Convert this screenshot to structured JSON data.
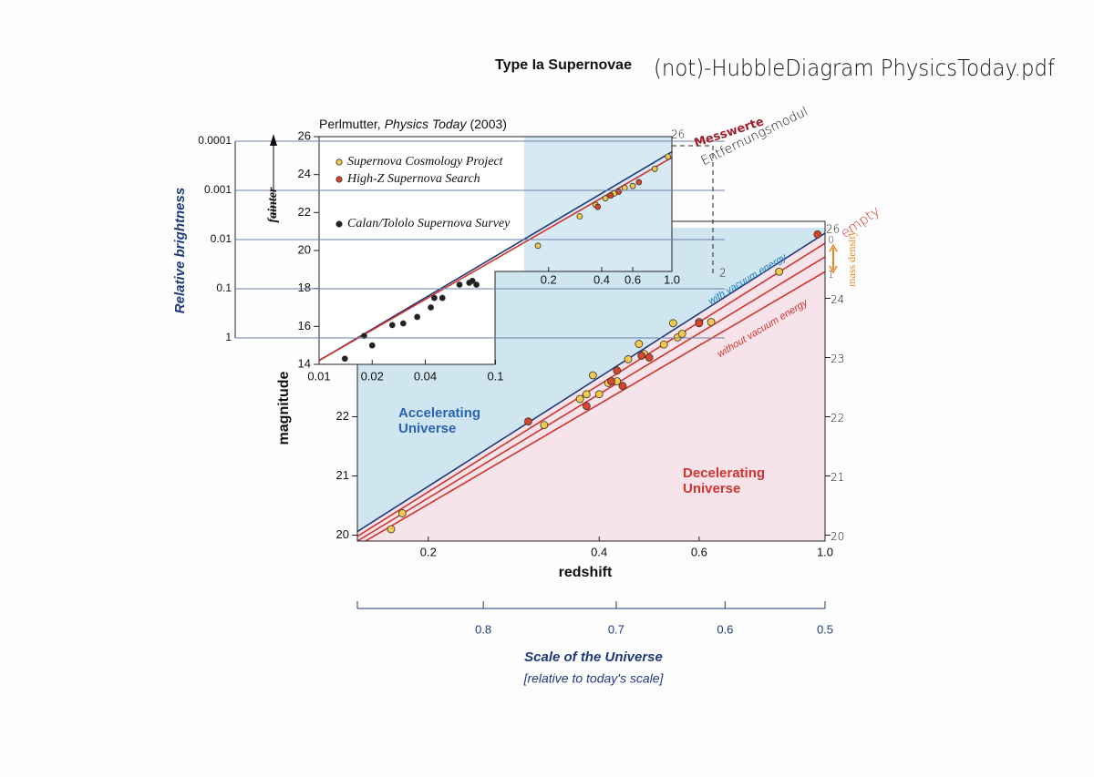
{
  "title": "Type Ia Supernovae",
  "handwritten_title": "(not)-HubbleDiagram PhysicsToday.pdf",
  "notes": {
    "messwerte": "Messwerte",
    "entfernungsmodul": "Entfernungsmodul",
    "inset_top": "26",
    "inset_x": "2",
    "right_top": "26",
    "empty": "empty",
    "density_zero": "0",
    "density_one": "1",
    "mass_density": "mass density"
  },
  "chart_data": [
    {
      "type": "scatter",
      "xlabel": "redshift",
      "ylabel": "magnitude",
      "xscale": "log",
      "xlim": [
        0.15,
        1
      ],
      "ylim": [
        19.9,
        25.3
      ],
      "y2lim": [
        19.9,
        25.3
      ],
      "xticks": [
        0.2,
        0.4,
        0.6,
        {
          "value": 1,
          "label": "1.0"
        }
      ],
      "yticks": [
        20,
        21,
        22
      ],
      "y2ticks": [
        20,
        21,
        22,
        23,
        24
      ],
      "annotations": {
        "accelerating": "Accelerating",
        "accelerating_2": "Universe",
        "decelerating": "Decelerating",
        "decelerating_2": "Universe",
        "with": "with vacuum energy",
        "without": "without vacuum energy"
      },
      "series": [
        {
          "color": "#f2c94c",
          "x": [
            0.172,
            0.18,
            0.32,
            0.37,
            0.38,
            0.39,
            0.4,
            0.415,
            0.43,
            0.45,
            0.47,
            0.48,
            0.52,
            0.54,
            0.55,
            0.56,
            0.6,
            0.63,
            0.83
          ],
          "values": [
            20.1,
            20.37,
            21.86,
            22.3,
            22.38,
            22.7,
            22.38,
            22.57,
            22.6,
            22.97,
            23.23,
            23.06,
            23.22,
            23.58,
            23.34,
            23.4,
            23.6,
            23.6,
            24.45
          ]
        },
        {
          "color": "#d9452b",
          "x": [
            0.3,
            0.38,
            0.42,
            0.43,
            0.44,
            0.475,
            0.49,
            0.6,
            0.97
          ],
          "values": [
            21.92,
            22.18,
            22.6,
            22.78,
            22.52,
            23.03,
            23.0,
            23.58,
            25.08
          ]
        }
      ],
      "lines": [
        {
          "color": "#1f3a7a",
          "x": [
            0.15,
            1
          ],
          "values": [
            20.06,
            25.1
          ]
        },
        {
          "color": "#d0342c",
          "x": [
            0.15,
            1
          ],
          "values": [
            19.98,
            24.93
          ]
        },
        {
          "color": "#d0342c",
          "x": [
            0.15,
            1
          ],
          "values": [
            19.9,
            24.7
          ]
        },
        {
          "color": "#d0342c",
          "x": [
            0.15,
            1
          ],
          "values": [
            19.82,
            24.45
          ]
        }
      ],
      "scale_axis": {
        "label": "Scale of the Universe",
        "sublabel": "[relative to today's scale]",
        "ticks": [
          0.8,
          0.7,
          0.6,
          0.5
        ]
      }
    },
    {
      "type": "scatter",
      "xscale": "log",
      "source": {
        "author": "Perlmutter,",
        "journal": "Physics Today",
        "year": "(2003)"
      },
      "xlim": [
        0.01,
        1
      ],
      "ylim": [
        14,
        26
      ],
      "xticks": [
        0.01,
        0.02,
        0.04,
        0.1,
        0.2,
        0.4,
        0.6,
        {
          "value": 1,
          "label": "1.0"
        }
      ],
      "yticks": [
        14,
        16,
        18,
        20,
        22,
        24,
        26
      ],
      "series": [
        {
          "name": "Supernova Cosmology Project",
          "color": "#f2c94c",
          "x": [
            0.174,
            0.3,
            0.37,
            0.42,
            0.47,
            0.54,
            0.6,
            0.8,
            0.95
          ],
          "values": [
            20.25,
            21.8,
            22.4,
            22.75,
            23.0,
            23.3,
            23.4,
            24.3,
            24.95
          ]
        },
        {
          "name": "High-Z Supernova Search",
          "color": "#d9452b",
          "x": [
            0.38,
            0.45,
            0.5,
            0.65
          ],
          "values": [
            22.3,
            22.9,
            23.1,
            23.6
          ]
        },
        {
          "name": "Calan/Tololo Supernova Survey",
          "color": "#222222",
          "x": [
            0.014,
            0.018,
            0.02,
            0.026,
            0.03,
            0.036,
            0.043,
            0.045,
            0.05,
            0.0625,
            0.071,
            0.074,
            0.078
          ],
          "values": [
            14.3,
            15.5,
            15.0,
            16.07,
            16.16,
            16.5,
            17.0,
            17.5,
            17.5,
            18.2,
            18.3,
            18.4,
            18.2
          ]
        }
      ],
      "lines": [
        {
          "color": "#1f3a7a",
          "x": [
            0.01,
            1
          ],
          "values": [
            14.2,
            25.2
          ]
        },
        {
          "color": "#d0342c",
          "x": [
            0.01,
            1
          ],
          "values": [
            14.2,
            24.9
          ]
        }
      ],
      "brightness_axis": {
        "label": "Relative brightness",
        "sublabel": "fainter",
        "log": true,
        "lim": [
          1,
          0.0001
        ],
        "ticks": [
          0.0001,
          0.001,
          0.01,
          0.1,
          1
        ]
      }
    }
  ]
}
